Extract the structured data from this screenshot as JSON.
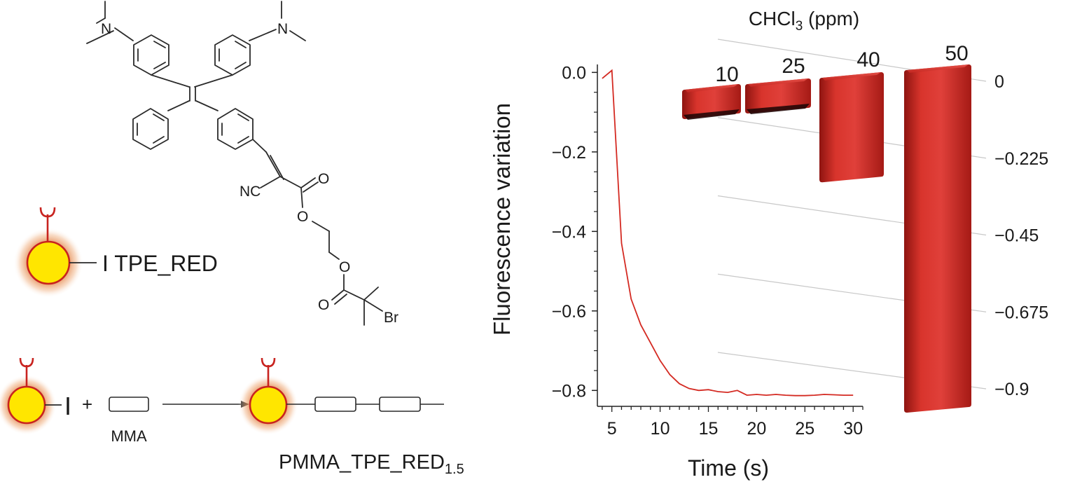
{
  "scheme": {
    "initiator_label": "I TPE_RED",
    "plus": "+",
    "initiator_atom": "I",
    "monomer_label": "MMA",
    "product_label": "PMMA_TPE_RED",
    "product_subscript": "1.5",
    "atoms": {
      "n1": "N",
      "n2": "N",
      "nc": "NC",
      "o1": "O",
      "o2": "O",
      "o3": "O",
      "o4": "O",
      "br": "Br"
    },
    "colors": {
      "particle_fill": "#ffe600",
      "particle_stroke": "#c8231f",
      "glow": "#e07a3a"
    }
  },
  "chart_data": [
    {
      "type": "line",
      "xlabel": "Time (s)",
      "ylabel": "Fluorescence variation",
      "xlim": [
        3.5,
        31
      ],
      "ylim": [
        -0.84,
        0.02
      ],
      "xticks": [
        5,
        10,
        15,
        20,
        25,
        30
      ],
      "yticks": [
        0.0,
        -0.2,
        -0.4,
        -0.6,
        -0.8
      ],
      "ytick_labels": [
        "0.0",
        "−0.2",
        "−0.4",
        "−0.6",
        "−0.8"
      ],
      "x": [
        4,
        5,
        6,
        7,
        8,
        9,
        10,
        11,
        12,
        13,
        14,
        15,
        16,
        17,
        18,
        19,
        20,
        21,
        22,
        23,
        24,
        25,
        26,
        27,
        28,
        29,
        30
      ],
      "y": [
        -0.015,
        0.005,
        -0.43,
        -0.57,
        -0.635,
        -0.68,
        -0.725,
        -0.76,
        -0.783,
        -0.795,
        -0.8,
        -0.798,
        -0.803,
        -0.805,
        -0.8,
        -0.812,
        -0.81,
        -0.812,
        -0.81,
        -0.812,
        -0.813,
        -0.813,
        -0.812,
        -0.81,
        -0.811,
        -0.812,
        -0.812
      ],
      "line_color": "#d42a22"
    },
    {
      "type": "bar",
      "title": "CHCl",
      "title_subscript": "3",
      "title_suffix": " (ppm)",
      "categories": [
        "10",
        "25",
        "40",
        "50"
      ],
      "values": [
        -0.06,
        -0.06,
        -0.22,
        -0.9
      ],
      "ylim": [
        -0.9,
        0
      ],
      "yticks": [
        0,
        -0.225,
        -0.45,
        -0.675,
        -0.9
      ],
      "ytick_labels": [
        "0",
        "−0.225",
        "−0.45",
        "−0.675",
        "−0.9"
      ],
      "bar_color": "#c8231f"
    }
  ]
}
